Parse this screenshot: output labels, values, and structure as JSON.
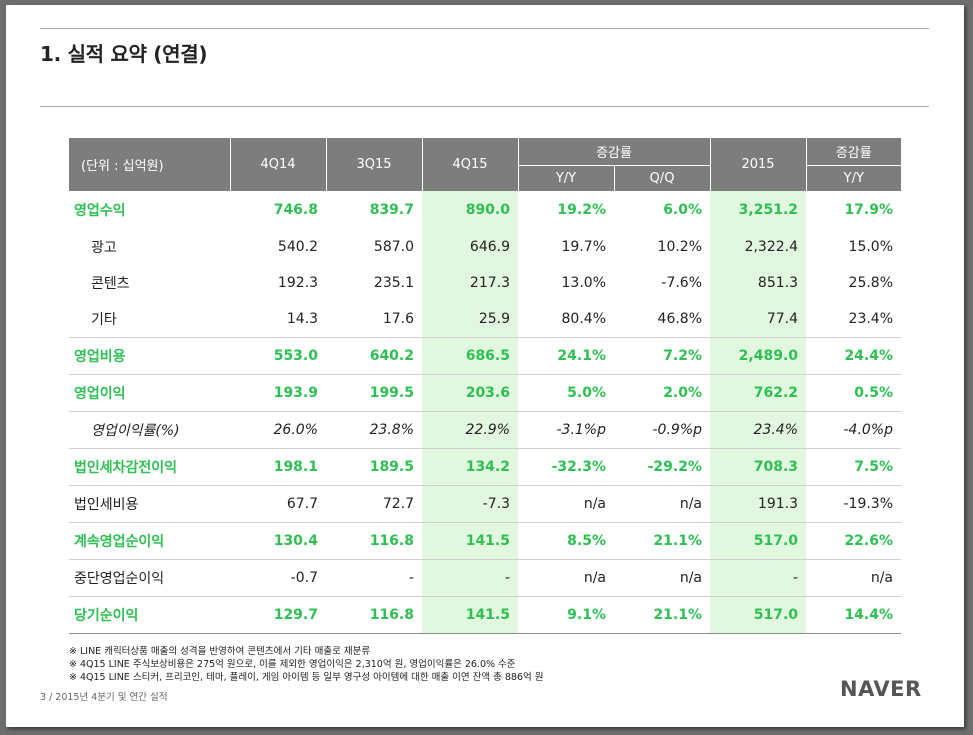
{
  "title": "1. 실적 요약 (연결)",
  "table": {
    "unit_label": "(단위 : 십억원)",
    "col_4q14": "4Q14",
    "col_3q15": "3Q15",
    "col_4q15": "4Q15",
    "group_change_1": "증감률",
    "col_yy": "Y/Y",
    "col_qq": "Q/Q",
    "col_2015": "2015",
    "group_change_2": "증감률",
    "col_yy2": "Y/Y",
    "rows": [
      {
        "label": "영업수익",
        "v": [
          "746.8",
          "839.7",
          "890.0",
          "19.2%",
          "6.0%",
          "3,251.2",
          "17.9%"
        ]
      },
      {
        "label": "광고",
        "v": [
          "540.2",
          "587.0",
          "646.9",
          "19.7%",
          "10.2%",
          "2,322.4",
          "15.0%"
        ]
      },
      {
        "label": "콘텐츠",
        "v": [
          "192.3",
          "235.1",
          "217.3",
          "13.0%",
          "-7.6%",
          "851.3",
          "25.8%"
        ]
      },
      {
        "label": "기타",
        "v": [
          "14.3",
          "17.6",
          "25.9",
          "80.4%",
          "46.8%",
          "77.4",
          "23.4%"
        ]
      },
      {
        "label": "영업비용",
        "v": [
          "553.0",
          "640.2",
          "686.5",
          "24.1%",
          "7.2%",
          "2,489.0",
          "24.4%"
        ]
      },
      {
        "label": "영업이익",
        "v": [
          "193.9",
          "199.5",
          "203.6",
          "5.0%",
          "2.0%",
          "762.2",
          "0.5%"
        ]
      },
      {
        "label": "영업이익률(%)",
        "v": [
          "26.0%",
          "23.8%",
          "22.9%",
          "-3.1%p",
          "-0.9%p",
          "23.4%",
          "-4.0%p"
        ]
      },
      {
        "label": "법인세차감전이익",
        "v": [
          "198.1",
          "189.5",
          "134.2",
          "-32.3%",
          "-29.2%",
          "708.3",
          "7.5%"
        ]
      },
      {
        "label": "법인세비용",
        "v": [
          "67.7",
          "72.7",
          "-7.3",
          "n/a",
          "n/a",
          "191.3",
          "-19.3%"
        ]
      },
      {
        "label": "계속영업순이익",
        "v": [
          "130.4",
          "116.8",
          "141.5",
          "8.5%",
          "21.1%",
          "517.0",
          "22.6%"
        ]
      },
      {
        "label": "중단영업순이익",
        "v": [
          "-0.7",
          "-",
          "-",
          "n/a",
          "n/a",
          "-",
          "n/a"
        ]
      },
      {
        "label": "당기순이익",
        "v": [
          "129.7",
          "116.8",
          "141.5",
          "9.1%",
          "21.1%",
          "517.0",
          "14.4%"
        ]
      }
    ]
  },
  "notes": [
    "※ LINE 캐릭터상품 매출의 성격을 반영하여 콘텐츠에서 기타 매출로 재분류",
    "※ 4Q15 LINE 주식보상비용은 275억 원으로, 이를 제외한 영업이익은 2,310억 원, 영업이익률은 26.0% 수준",
    "※ 4Q15 LINE 스티커, 프리코인, 테마, 플레이, 게임 아이템 등 일부 영구성 아이템에 대한 매출 이연 잔액 총 886억 원"
  ],
  "footer": "3 / 2015년 4분기 및 연간 실적",
  "logo": "NAVER",
  "colors": {
    "accent_green": "#2ec053",
    "highlight_bg": "#e2f7df",
    "header_gray": "#7d7d7d"
  }
}
